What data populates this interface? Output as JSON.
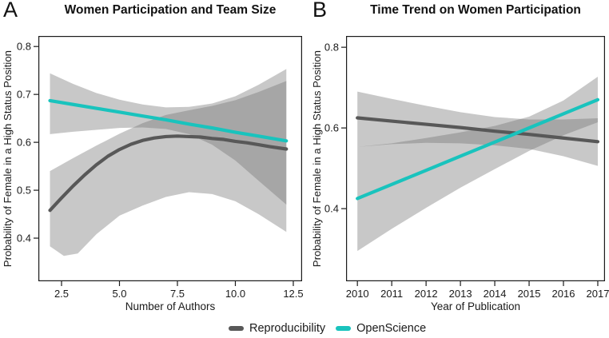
{
  "colors": {
    "reproducibility": "#585858",
    "openscience": "#19C3BD",
    "band": "#6e6e6e",
    "axis": "#1b1b1b"
  },
  "legend": {
    "items": [
      {
        "label": "Reproducibility",
        "color_key": "reproducibility"
      },
      {
        "label": "OpenScience",
        "color_key": "openscience"
      }
    ]
  },
  "chart_data": [
    {
      "type": "line",
      "panel_label": "A",
      "title": "Women Participation and Team Size",
      "xlabel": "Number of Authors",
      "ylabel": "Probability of Female in a High Status Position",
      "grid": "off",
      "legend_position": "bottom",
      "xlim": [
        1.5,
        12.88
      ],
      "ylim": [
        0.31,
        0.822
      ],
      "xticks": {
        "values": [
          2.5,
          5.0,
          7.5,
          10.0,
          12.5
        ],
        "labels": [
          "2.5",
          "5.0",
          "7.5",
          "10.0",
          "12.5"
        ]
      },
      "yticks": {
        "values": [
          0.4,
          0.5,
          0.6,
          0.7,
          0.8
        ],
        "labels": [
          "0.4",
          "0.5",
          "0.6",
          "0.7",
          "0.8"
        ]
      },
      "series": [
        {
          "name": "Reproducibility",
          "color_key": "reproducibility",
          "line": [
            [
              2,
              0.458
            ],
            [
              2.5,
              0.484
            ],
            [
              3,
              0.509
            ],
            [
              3.5,
              0.532
            ],
            [
              4,
              0.553
            ],
            [
              4.5,
              0.571
            ],
            [
              5,
              0.585
            ],
            [
              5.5,
              0.596
            ],
            [
              6,
              0.604
            ],
            [
              6.5,
              0.609
            ],
            [
              7,
              0.612
            ],
            [
              7.5,
              0.613
            ],
            [
              8,
              0.612
            ],
            [
              8.5,
              0.611
            ],
            [
              9,
              0.608
            ],
            [
              9.5,
              0.606
            ],
            [
              10,
              0.602
            ],
            [
              10.5,
              0.599
            ],
            [
              11,
              0.595
            ],
            [
              11.5,
              0.591
            ],
            [
              12.2,
              0.586
            ]
          ],
          "band_upper": [
            [
              2,
              0.54
            ],
            [
              3,
              0.567
            ],
            [
              4,
              0.593
            ],
            [
              5,
              0.618
            ],
            [
              6,
              0.64
            ],
            [
              7,
              0.657
            ],
            [
              8,
              0.667
            ],
            [
              9,
              0.676
            ],
            [
              10,
              0.688
            ],
            [
              11,
              0.705
            ],
            [
              12.2,
              0.728
            ]
          ],
          "band_lower": [
            [
              2,
              0.383
            ],
            [
              2.6,
              0.363
            ],
            [
              3.2,
              0.368
            ],
            [
              4,
              0.408
            ],
            [
              5,
              0.447
            ],
            [
              6,
              0.468
            ],
            [
              7,
              0.486
            ],
            [
              8,
              0.496
            ],
            [
              9,
              0.492
            ],
            [
              10,
              0.477
            ],
            [
              11,
              0.45
            ],
            [
              12.2,
              0.413
            ]
          ]
        },
        {
          "name": "OpenScience",
          "color_key": "openscience",
          "line": [
            [
              2,
              0.687
            ],
            [
              3,
              0.679
            ],
            [
              4,
              0.671
            ],
            [
              5,
              0.663
            ],
            [
              6,
              0.655
            ],
            [
              7,
              0.647
            ],
            [
              8,
              0.638
            ],
            [
              9,
              0.63
            ],
            [
              10,
              0.621
            ],
            [
              11,
              0.613
            ],
            [
              12.2,
              0.603
            ]
          ],
          "band_upper": [
            [
              2,
              0.744
            ],
            [
              3,
              0.722
            ],
            [
              4,
              0.703
            ],
            [
              5,
              0.689
            ],
            [
              6,
              0.679
            ],
            [
              7,
              0.673
            ],
            [
              8,
              0.674
            ],
            [
              9,
              0.681
            ],
            [
              10,
              0.696
            ],
            [
              11,
              0.72
            ],
            [
              12.2,
              0.753
            ]
          ],
          "band_lower": [
            [
              2,
              0.617
            ],
            [
              3,
              0.622
            ],
            [
              4,
              0.626
            ],
            [
              5,
              0.63
            ],
            [
              6,
              0.631
            ],
            [
              7,
              0.628
            ],
            [
              8,
              0.617
            ],
            [
              9,
              0.595
            ],
            [
              10,
              0.562
            ],
            [
              11,
              0.52
            ],
            [
              12.2,
              0.47
            ]
          ]
        }
      ]
    },
    {
      "type": "line",
      "panel_label": "B",
      "title": "Time Trend on Women Participation",
      "xlabel": "Year of Publication",
      "ylabel": "Probability of Female in a High Status Position",
      "grid": "off",
      "legend_position": "bottom",
      "xlim": [
        2009.67,
        2017.21
      ],
      "ylim": [
        0.22,
        0.828
      ],
      "xticks": {
        "values": [
          2010,
          2011,
          2012,
          2013,
          2014,
          2015,
          2016,
          2017
        ],
        "labels": [
          "2010",
          "2011",
          "2012",
          "2013",
          "2014",
          "2015",
          "2016",
          "2017"
        ]
      },
      "yticks": {
        "values": [
          0.4,
          0.6,
          0.8
        ],
        "labels": [
          "0.4",
          "0.6",
          "0.8"
        ]
      },
      "series": [
        {
          "name": "Reproducibility",
          "color_key": "reproducibility",
          "line": [
            [
              2010,
              0.625
            ],
            [
              2011,
              0.617
            ],
            [
              2012,
              0.609
            ],
            [
              2013,
              0.601
            ],
            [
              2014,
              0.592
            ],
            [
              2015,
              0.584
            ],
            [
              2016,
              0.575
            ],
            [
              2017,
              0.566
            ]
          ],
          "band_upper": [
            [
              2010,
              0.69
            ],
            [
              2011,
              0.672
            ],
            [
              2012,
              0.655
            ],
            [
              2013,
              0.639
            ],
            [
              2014,
              0.627
            ],
            [
              2015,
              0.621
            ],
            [
              2016,
              0.621
            ],
            [
              2017,
              0.624
            ]
          ],
          "band_lower": [
            [
              2010,
              0.553
            ],
            [
              2011,
              0.56
            ],
            [
              2012,
              0.563
            ],
            [
              2013,
              0.562
            ],
            [
              2014,
              0.557
            ],
            [
              2015,
              0.548
            ],
            [
              2016,
              0.53
            ],
            [
              2017,
              0.506
            ]
          ]
        },
        {
          "name": "OpenScience",
          "color_key": "openscience",
          "line": [
            [
              2010,
              0.425
            ],
            [
              2011,
              0.46
            ],
            [
              2012,
              0.495
            ],
            [
              2013,
              0.53
            ],
            [
              2014,
              0.565
            ],
            [
              2015,
              0.6
            ],
            [
              2016,
              0.635
            ],
            [
              2017,
              0.67
            ]
          ],
          "band_upper": [
            [
              2010,
              0.553
            ],
            [
              2011,
              0.562
            ],
            [
              2012,
              0.575
            ],
            [
              2013,
              0.589
            ],
            [
              2014,
              0.605
            ],
            [
              2015,
              0.628
            ],
            [
              2016,
              0.668
            ],
            [
              2017,
              0.727
            ]
          ],
          "band_lower": [
            [
              2010,
              0.295
            ],
            [
              2011,
              0.35
            ],
            [
              2012,
              0.402
            ],
            [
              2013,
              0.452
            ],
            [
              2014,
              0.498
            ],
            [
              2015,
              0.543
            ],
            [
              2016,
              0.582
            ],
            [
              2017,
              0.614
            ]
          ]
        }
      ]
    }
  ]
}
